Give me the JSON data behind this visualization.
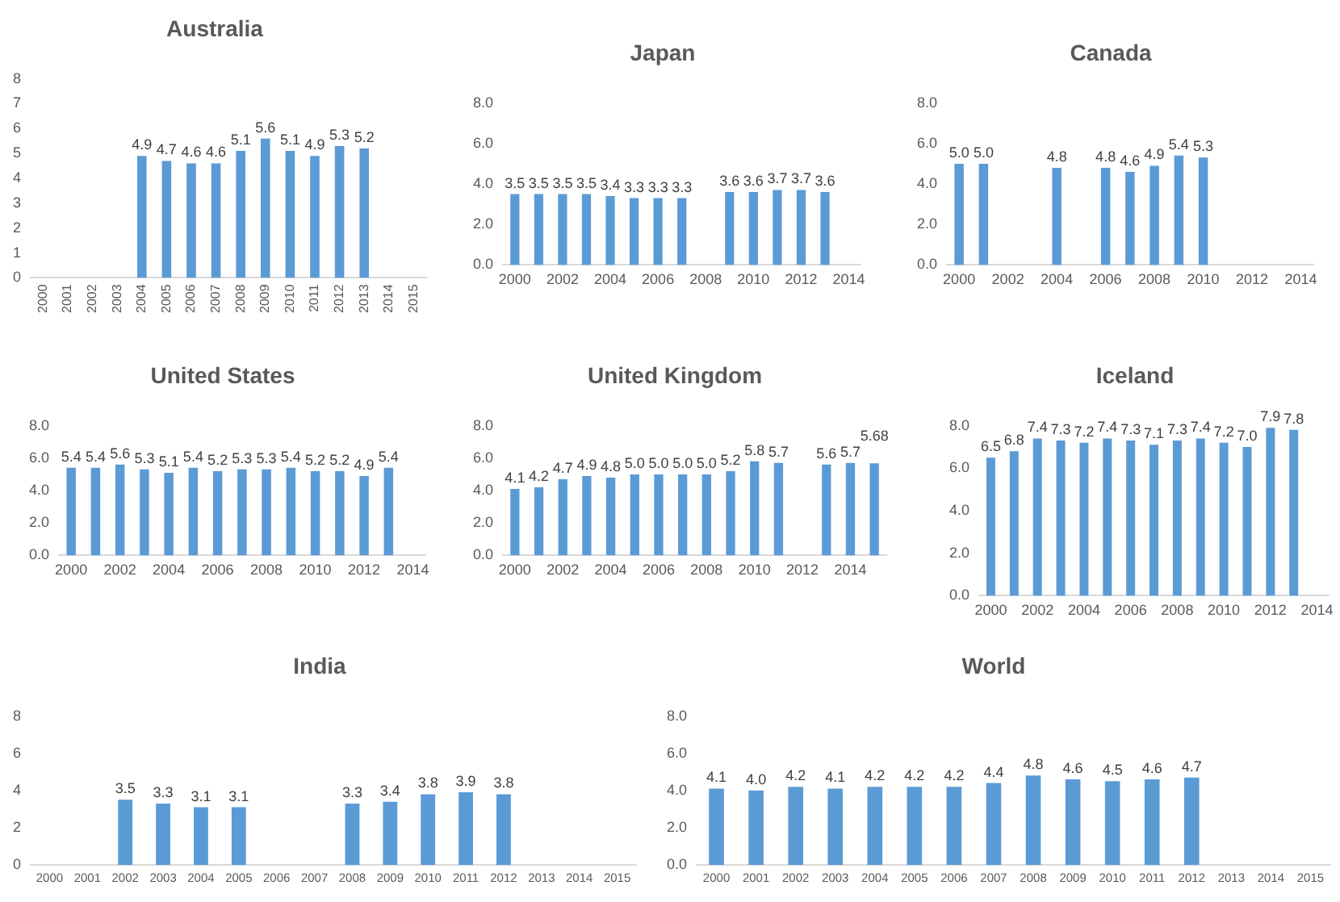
{
  "chart_data": [
    {
      "type": "bar",
      "title": "Australia",
      "categories": [
        "2000",
        "2001",
        "2002",
        "2003",
        "2004",
        "2005",
        "2006",
        "2007",
        "2008",
        "2009",
        "2010",
        "2011",
        "2012",
        "2013",
        "2014",
        "2015"
      ],
      "values": [
        null,
        null,
        null,
        null,
        4.9,
        4.7,
        4.6,
        4.6,
        5.1,
        5.6,
        5.1,
        4.9,
        5.3,
        5.2,
        null,
        null
      ],
      "value_labels": [
        null,
        null,
        null,
        null,
        "4.9",
        "4.7",
        "4.6",
        "4.6",
        "5.1",
        "5.6",
        "5.1",
        "4.9",
        "5.3",
        "5.2",
        null,
        null
      ],
      "color": "#5b9bd5",
      "ylim": [
        0,
        8
      ],
      "yticks": [
        0,
        1,
        2,
        3,
        4,
        5,
        6,
        7,
        8
      ]
    },
    {
      "type": "bar",
      "title": "Japan",
      "categories": [
        "2000",
        null,
        "2002",
        null,
        "2004",
        null,
        "2006",
        null,
        "2008",
        null,
        "2010",
        null,
        "2012",
        null,
        "2014"
      ],
      "values": [
        3.5,
        3.5,
        3.5,
        3.5,
        3.4,
        3.3,
        3.3,
        3.3,
        null,
        3.6,
        3.6,
        3.7,
        3.7,
        3.6,
        null
      ],
      "value_labels": [
        "3.5",
        "3.5",
        "3.5",
        "3.5",
        "3.4",
        "3.3",
        "3.3",
        "3.3",
        null,
        "3.6",
        "3.6",
        "3.7",
        "3.7",
        "3.6",
        null
      ],
      "color": "#5b9bd5",
      "ylim": [
        0,
        8
      ],
      "yticks": [
        {
          "value": 0,
          "label": "0.0"
        },
        {
          "value": 2,
          "label": "2.0"
        },
        {
          "value": 4,
          "label": "4.0"
        },
        {
          "value": 6,
          "label": "6.0"
        },
        {
          "value": 8,
          "label": "8.0"
        }
      ]
    },
    {
      "type": "bar",
      "title": "Canada",
      "categories": [
        "2000",
        null,
        "2002",
        null,
        "2004",
        null,
        "2006",
        null,
        "2008",
        null,
        "2010",
        null,
        "2012",
        null,
        "2014"
      ],
      "values": [
        5.0,
        5.0,
        null,
        null,
        4.8,
        null,
        4.8,
        4.6,
        4.9,
        5.4,
        5.3,
        null,
        null,
        null,
        null
      ],
      "value_labels": [
        "5.0",
        "5.0",
        null,
        null,
        "4.8",
        null,
        "4.8",
        "4.6",
        "4.9",
        "5.4",
        "5.3",
        null,
        null,
        null,
        null
      ],
      "color": "#5b9bd5",
      "ylim": [
        0,
        8
      ],
      "yticks": [
        {
          "value": 0,
          "label": "0.0"
        },
        {
          "value": 2,
          "label": "2.0"
        },
        {
          "value": 4,
          "label": "4.0"
        },
        {
          "value": 6,
          "label": "6.0"
        },
        {
          "value": 8,
          "label": "8.0"
        }
      ]
    },
    {
      "type": "bar",
      "title": "United States",
      "categories": [
        "2000",
        null,
        "2002",
        null,
        "2004",
        null,
        "2006",
        null,
        "2008",
        null,
        "2010",
        null,
        "2012",
        null,
        "2014"
      ],
      "values": [
        5.4,
        5.4,
        5.6,
        5.3,
        5.1,
        5.4,
        5.2,
        5.3,
        5.3,
        5.4,
        5.2,
        5.2,
        4.9,
        5.4,
        null
      ],
      "value_labels": [
        "5.4",
        "5.4",
        "5.6",
        "5.3",
        "5.1",
        "5.4",
        "5.2",
        "5.3",
        "5.3",
        "5.4",
        "5.2",
        "5.2",
        "4.9",
        "5.4",
        null
      ],
      "color": "#5b9bd5",
      "ylim": [
        0,
        8
      ],
      "yticks": [
        {
          "value": 0,
          "label": "0.0"
        },
        {
          "value": 2,
          "label": "2.0"
        },
        {
          "value": 4,
          "label": "4.0"
        },
        {
          "value": 6,
          "label": "6.0"
        },
        {
          "value": 8,
          "label": "8.0"
        }
      ]
    },
    {
      "type": "bar",
      "title": "United Kingdom",
      "categories": [
        "2000",
        null,
        "2002",
        null,
        "2004",
        null,
        "2006",
        null,
        "2008",
        null,
        "2010",
        null,
        "2012",
        null,
        "2014",
        null
      ],
      "values": [
        4.1,
        4.2,
        4.7,
        4.9,
        4.8,
        5.0,
        5.0,
        5.0,
        5.0,
        5.2,
        5.8,
        5.7,
        null,
        5.6,
        5.7,
        5.68
      ],
      "value_labels": [
        "4.1",
        "4.2",
        "4.7",
        "4.9",
        "4.8",
        "5.0",
        "5.0",
        "5.0",
        "5.0",
        "5.2",
        "5.8",
        "5.7",
        null,
        "5.6",
        "5.7",
        "5.68"
      ],
      "color": "#5b9bd5",
      "ylim": [
        0,
        8
      ],
      "yticks": [
        {
          "value": 0,
          "label": "0.0"
        },
        {
          "value": 2,
          "label": "2.0"
        },
        {
          "value": 4,
          "label": "4.0"
        },
        {
          "value": 6,
          "label": "6.0"
        },
        {
          "value": 8,
          "label": "8.0"
        }
      ]
    },
    {
      "type": "bar",
      "title": "Iceland",
      "categories": [
        "2000",
        null,
        "2002",
        null,
        "2004",
        null,
        "2006",
        null,
        "2008",
        null,
        "2010",
        null,
        "2012",
        null,
        "2014"
      ],
      "values": [
        6.5,
        6.8,
        7.4,
        7.3,
        7.2,
        7.4,
        7.3,
        7.1,
        7.3,
        7.4,
        7.2,
        7.0,
        7.9,
        7.8,
        null
      ],
      "value_labels": [
        "6.5",
        "6.8",
        "7.4",
        "7.3",
        "7.2",
        "7.4",
        "7.3",
        "7.1",
        "7.3",
        "7.4",
        "7.2",
        "7.0",
        "7.9",
        "7.8",
        null
      ],
      "color": "#5b9bd5",
      "ylim": [
        0,
        8
      ],
      "yticks": [
        {
          "value": 0,
          "label": "0.0"
        },
        {
          "value": 2,
          "label": "2.0"
        },
        {
          "value": 4,
          "label": "4.0"
        },
        {
          "value": 6,
          "label": "6.0"
        },
        {
          "value": 8,
          "label": "8.0"
        }
      ]
    },
    {
      "type": "bar",
      "title": "India",
      "categories": [
        "2000",
        "2001",
        "2002",
        "2003",
        "2004",
        "2005",
        "2006",
        "2007",
        "2008",
        "2009",
        "2010",
        "2011",
        "2012",
        "2013",
        "2014",
        "2015"
      ],
      "values": [
        null,
        null,
        3.5,
        3.3,
        3.1,
        3.1,
        null,
        null,
        3.3,
        3.4,
        3.8,
        3.9,
        3.8,
        null,
        null,
        null
      ],
      "value_labels": [
        null,
        null,
        "3.5",
        "3.3",
        "3.1",
        "3.1",
        null,
        null,
        "3.3",
        "3.4",
        "3.8",
        "3.9",
        "3.8",
        null,
        null,
        null
      ],
      "color": "#5b9bd5",
      "ylim": [
        0,
        8
      ],
      "yticks": [
        0,
        2,
        4,
        6,
        8
      ]
    },
    {
      "type": "bar",
      "title": "World",
      "categories": [
        "2000",
        "2001",
        "2002",
        "2003",
        "2004",
        "2005",
        "2006",
        "2007",
        "2008",
        "2009",
        "2010",
        "2011",
        "2012",
        "2013",
        "2014",
        "2015"
      ],
      "values": [
        4.1,
        4.0,
        4.2,
        4.1,
        4.2,
        4.2,
        4.2,
        4.4,
        4.8,
        4.6,
        4.5,
        4.6,
        4.7,
        null,
        null,
        null
      ],
      "value_labels": [
        "4.1",
        "4.0",
        "4.2",
        "4.1",
        "4.2",
        "4.2",
        "4.2",
        "4.4",
        "4.8",
        "4.6",
        "4.5",
        "4.6",
        "4.7",
        null,
        null,
        null
      ],
      "color": "#5b9bd5",
      "ylim": [
        0,
        8
      ],
      "yticks": [
        {
          "value": 0,
          "label": "0.0"
        },
        {
          "value": 2,
          "label": "2.0"
        },
        {
          "value": 4,
          "label": "4.0"
        },
        {
          "value": 6,
          "label": "6.0"
        },
        {
          "value": 8,
          "label": "8.0"
        }
      ]
    }
  ]
}
